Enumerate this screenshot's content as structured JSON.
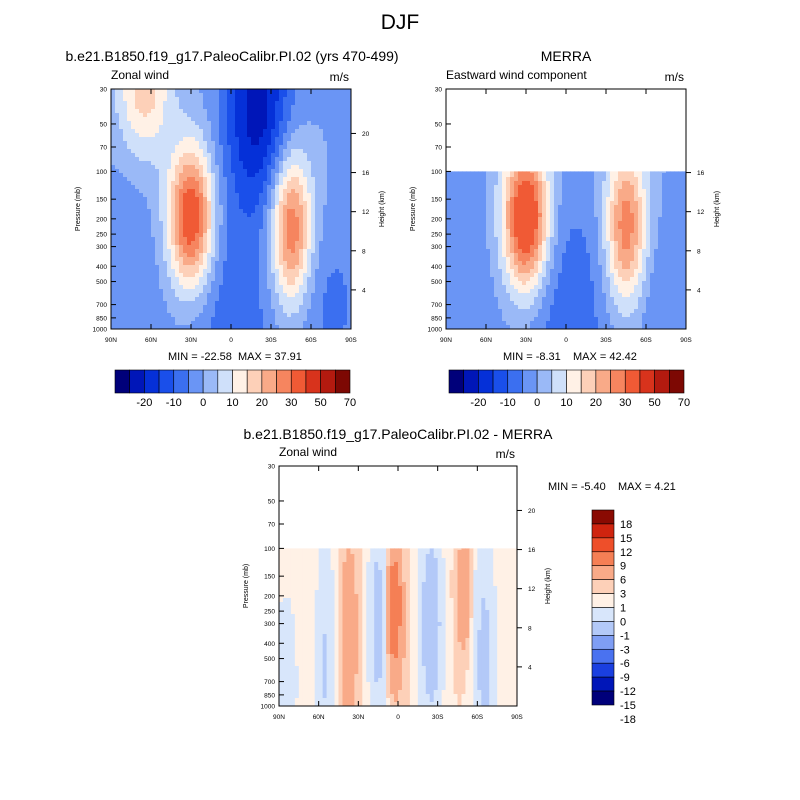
{
  "page_title": "DJF",
  "palette_main": [
    "#00007a",
    "#0016b8",
    "#0530d8",
    "#1a4fea",
    "#3b6ff0",
    "#6a95f5",
    "#9ab9f7",
    "#cfe0fa",
    "#fff1e6",
    "#fdd0b8",
    "#f9aa88",
    "#f6855f",
    "#f05a35",
    "#d8331c",
    "#b31a0f",
    "#7d0803"
  ],
  "palette_diff": [
    "#00007a",
    "#0016b8",
    "#1a3fe0",
    "#4a72f0",
    "#7f9ef4",
    "#b3c9f8",
    "#d8e6fb",
    "#fff1e6",
    "#fdd0b8",
    "#f9aa88",
    "#f57f55",
    "#ee4f2a",
    "#cf240f",
    "#8a0a02"
  ],
  "chart_data": [
    {
      "type": "heatmap",
      "title": "b.e21.B1850.f19_g17.PaleoCalibr.PI.02 (yrs 470-499)",
      "left_label": "Zonal wind",
      "right_label": "m/s",
      "ylabel": "Pressure (mb)",
      "right_ylabel": "Height (km)",
      "x_ticks": [
        "90N",
        "60N",
        "30N",
        "0",
        "30S",
        "60S",
        "90S"
      ],
      "y_ticks": [
        "30",
        "50",
        "70",
        "100",
        "150",
        "200",
        "250",
        "300",
        "400",
        "500",
        "700",
        "850",
        "1000"
      ],
      "height_ticks": [
        "20",
        "16",
        "12",
        "8",
        "4"
      ],
      "min_text": "MIN = -22.58",
      "max_text": "MAX =  37.91",
      "min": -22.58,
      "max": 37.91,
      "levels": [
        -25,
        -20,
        -15,
        -10,
        -5,
        0,
        5,
        10,
        15,
        20,
        25,
        30,
        40,
        50,
        60,
        70,
        80
      ],
      "colorbar_labels": [
        "-20",
        "-10",
        "0",
        "10",
        "20",
        "30",
        "50",
        "70"
      ],
      "top_pressure": 30,
      "features": [
        {
          "lat": 30,
          "p": 200,
          "v": 37.91,
          "slat": 12,
          "slog": 0.32
        },
        {
          "lat": -45,
          "p": 230,
          "v": 32,
          "slat": 11,
          "slog": 0.35
        },
        {
          "lat": 65,
          "p": 30,
          "v": 18,
          "slat": 14,
          "slog": 0.3
        },
        {
          "lat": -20,
          "p": 40,
          "v": -22.58,
          "slat": 18,
          "slog": 0.45
        },
        {
          "lat": 0,
          "p": 700,
          "v": -8,
          "slat": 28,
          "slog": 0.5
        },
        {
          "lat": -75,
          "p": 700,
          "v": -6,
          "slat": 20,
          "slog": 0.4
        },
        {
          "lat": 80,
          "p": 500,
          "v": -4,
          "slat": 18,
          "slog": 0.5
        }
      ]
    },
    {
      "type": "heatmap",
      "title": "MERRA",
      "left_label": "Eastward wind component",
      "right_label": "m/s",
      "ylabel": "Pressure (mb)",
      "right_ylabel": "Height (km)",
      "x_ticks": [
        "90N",
        "60N",
        "30N",
        "0",
        "30S",
        "60S",
        "90S"
      ],
      "y_ticks": [
        "30",
        "50",
        "70",
        "100",
        "150",
        "200",
        "250",
        "300",
        "400",
        "500",
        "700",
        "850",
        "1000"
      ],
      "height_ticks": [
        "16",
        "12",
        "8",
        "4"
      ],
      "min_text": "MIN =  -8.31",
      "max_text": "MAX =  42.42",
      "min": -8.31,
      "max": 42.42,
      "levels": [
        -25,
        -20,
        -15,
        -10,
        -5,
        0,
        5,
        10,
        15,
        20,
        25,
        30,
        40,
        50,
        60,
        70,
        80
      ],
      "colorbar_labels": [
        "-20",
        "-10",
        "0",
        "10",
        "20",
        "30",
        "50",
        "70"
      ],
      "top_pressure": 100,
      "features": [
        {
          "lat": 30,
          "p": 200,
          "v": 42.42,
          "slat": 12,
          "slog": 0.33
        },
        {
          "lat": -45,
          "p": 230,
          "v": 30,
          "slat": 11,
          "slog": 0.36
        },
        {
          "lat": 0,
          "p": 700,
          "v": -8.31,
          "slat": 28,
          "slog": 0.55
        },
        {
          "lat": -75,
          "p": 700,
          "v": -5,
          "slat": 20,
          "slog": 0.4
        },
        {
          "lat": 80,
          "p": 500,
          "v": -3,
          "slat": 18,
          "slog": 0.5
        }
      ]
    },
    {
      "type": "heatmap",
      "title": "b.e21.B1850.f19_g17.PaleoCalibr.PI.02 - MERRA",
      "left_label": "Zonal wind",
      "right_label": "m/s",
      "ylabel": "Pressure (mb)",
      "right_ylabel": "Height (km)",
      "x_ticks": [
        "90N",
        "60N",
        "30N",
        "0",
        "30S",
        "60S",
        "90S"
      ],
      "y_ticks": [
        "30",
        "50",
        "70",
        "100",
        "150",
        "200",
        "250",
        "300",
        "400",
        "500",
        "700",
        "850",
        "1000"
      ],
      "height_ticks": [
        "20",
        "16",
        "12",
        "8",
        "4"
      ],
      "min_text": "MIN =  -5.40",
      "max_text": "MAX =   4.21",
      "min": -5.4,
      "max": 4.21,
      "levels": [
        -18,
        -15,
        -12,
        -9,
        -6,
        -3,
        -1,
        0,
        1,
        3,
        6,
        9,
        12,
        15,
        18
      ],
      "colorbar_labels": [
        "18",
        "15",
        "12",
        "9",
        "6",
        "3",
        "1",
        "0",
        "-1",
        "-3",
        "-6",
        "-9",
        "-12",
        "-15",
        "-18"
      ],
      "top_pressure": 100,
      "features": [
        {
          "lat": 3,
          "p": 180,
          "v": 4.21,
          "slat": 4,
          "slog": 0.2
        },
        {
          "lat": 3,
          "p": 400,
          "v": 3.2,
          "slat": 5,
          "slog": 0.25
        },
        {
          "lat": -50,
          "p": 200,
          "v": 3.0,
          "slat": 4,
          "slog": 0.25
        },
        {
          "lat": 37,
          "p": 350,
          "v": 2.2,
          "slat": 5,
          "slog": 0.45
        },
        {
          "lat": 15,
          "p": 300,
          "v": -4.5,
          "slat": 5,
          "slog": 0.45
        },
        {
          "lat": -25,
          "p": 300,
          "v": -5.4,
          "slat": 6,
          "slog": 0.45
        },
        {
          "lat": -65,
          "p": 500,
          "v": -3.8,
          "slat": 6,
          "slog": 0.55
        },
        {
          "lat": 55,
          "p": 550,
          "v": -3.2,
          "slat": 5,
          "slog": 0.6
        },
        {
          "lat": 85,
          "p": 700,
          "v": -1.8,
          "slat": 8,
          "slog": 0.5
        }
      ]
    }
  ]
}
